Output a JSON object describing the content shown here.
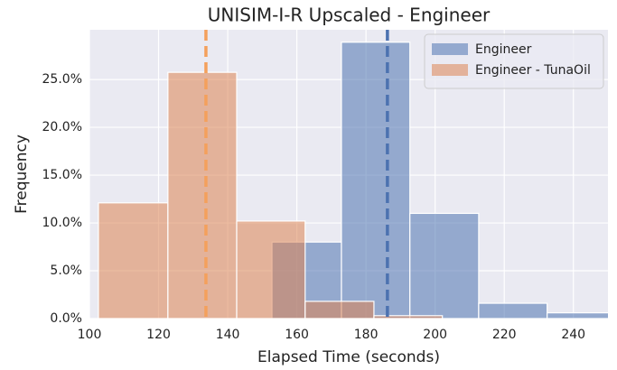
{
  "chart_data": {
    "type": "histogram",
    "title": "UNISIM-I-R Upscaled - Engineer",
    "x_label": "Elapsed Time (seconds)",
    "y_label": "Frequency",
    "xlim": [
      100,
      250
    ],
    "ylim": [
      0,
      30.2
    ],
    "xticks": [
      100,
      120,
      140,
      160,
      180,
      200,
      220,
      240
    ],
    "yticks": [
      {
        "value": 0,
        "label": "0.0%"
      },
      {
        "value": 5,
        "label": "5.0%"
      },
      {
        "value": 10,
        "label": "10.0%"
      },
      {
        "value": 15,
        "label": "15.0%"
      },
      {
        "value": 20,
        "label": "20.0%"
      },
      {
        "value": 25,
        "label": "25.0%"
      }
    ],
    "grid": true,
    "legend": "upper right",
    "series": [
      {
        "name": "Engineer",
        "color": "#4c72b0",
        "bins": [
          152.8,
          172.9,
          192.7,
          212.6,
          232.4,
          252.3
        ],
        "values": [
          8.0,
          28.9,
          11.0,
          1.6,
          0.6
        ]
      },
      {
        "name": "Engineer - TunaOil",
        "color": "#dd8452",
        "bins": [
          102.6,
          122.7,
          142.6,
          162.4,
          182.3,
          202.1
        ],
        "values": [
          12.1,
          25.75,
          10.2,
          1.8,
          0.3
        ]
      }
    ],
    "vlines": [
      {
        "value": 186.2,
        "color": "#4c72b0"
      },
      {
        "value": 133.7,
        "color": "#f4a05c"
      }
    ]
  }
}
